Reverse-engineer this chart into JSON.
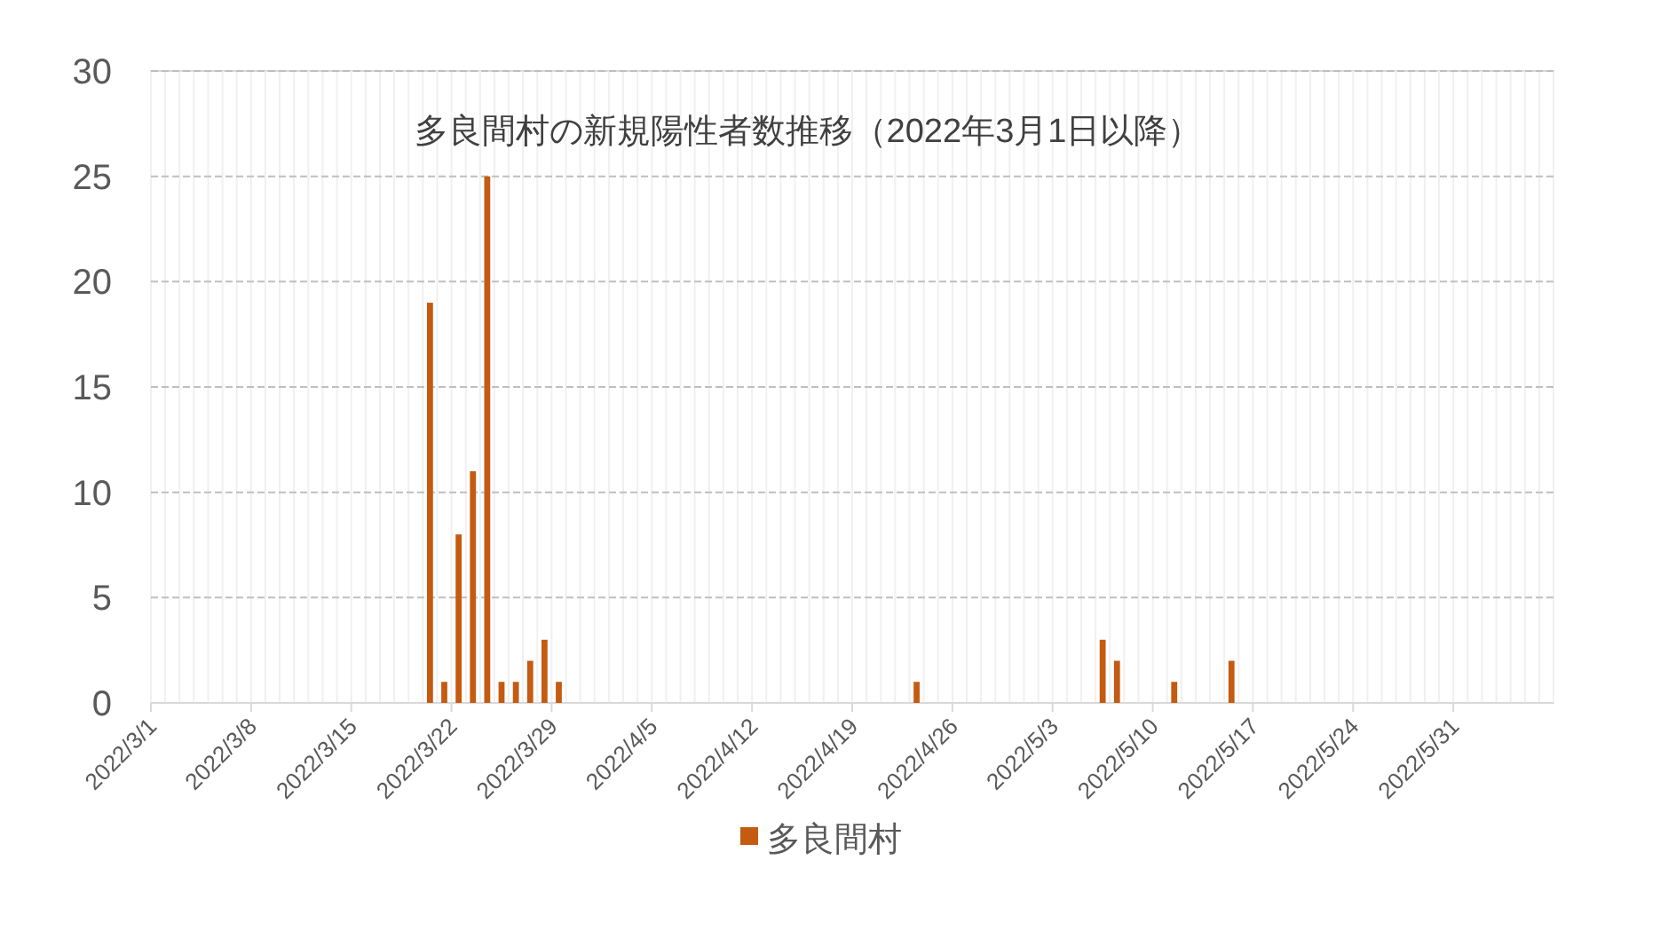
{
  "chart_data": {
    "type": "bar",
    "title": "多良間村の新規陽性者数推移（2022年3月1日以降）",
    "x": [
      "2022-03-20",
      "2022-03-21",
      "2022-03-22",
      "2022-03-23",
      "2022-03-24",
      "2022-03-25",
      "2022-03-26",
      "2022-03-27",
      "2022-03-28",
      "2022-03-29",
      "2022-04-23",
      "2022-05-06",
      "2022-05-07",
      "2022-05-11",
      "2022-05-15"
    ],
    "series": [
      {
        "name": "多良間村",
        "color": "#c55a11",
        "values": [
          19,
          1,
          8,
          11,
          25,
          1,
          1,
          2,
          3,
          1,
          1,
          3,
          2,
          1,
          2
        ]
      }
    ],
    "xlim": [
      "2022-03-01",
      "2022-06-07"
    ],
    "xticks": [
      {
        "value": "2022-03-01",
        "label": "2022/3/1"
      },
      {
        "value": "2022-03-08",
        "label": "2022/3/8"
      },
      {
        "value": "2022-03-15",
        "label": "2022/3/15"
      },
      {
        "value": "2022-03-22",
        "label": "2022/3/22"
      },
      {
        "value": "2022-03-29",
        "label": "2022/3/29"
      },
      {
        "value": "2022-04-05",
        "label": "2022/4/5"
      },
      {
        "value": "2022-04-12",
        "label": "2022/4/12"
      },
      {
        "value": "2022-04-19",
        "label": "2022/4/19"
      },
      {
        "value": "2022-04-26",
        "label": "2022/4/26"
      },
      {
        "value": "2022-05-03",
        "label": "2022/5/3"
      },
      {
        "value": "2022-05-10",
        "label": "2022/5/10"
      },
      {
        "value": "2022-05-17",
        "label": "2022/5/17"
      },
      {
        "value": "2022-05-24",
        "label": "2022/5/24"
      },
      {
        "value": "2022-05-31",
        "label": "2022/5/31"
      }
    ],
    "ylim": [
      0,
      30
    ],
    "yticks": [
      0,
      5,
      10,
      15,
      20,
      25,
      30
    ],
    "grid": true,
    "legend": "bottom"
  }
}
